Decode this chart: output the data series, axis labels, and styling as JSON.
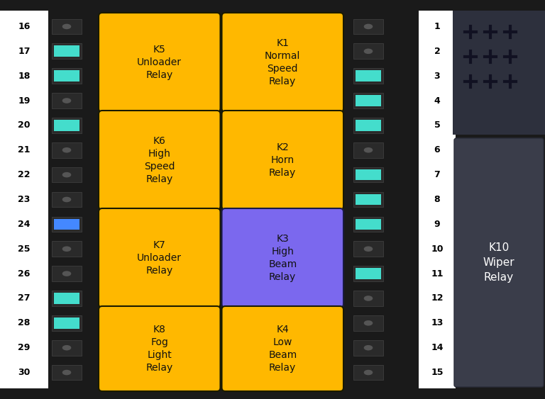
{
  "bg_color": "#1a1a1a",
  "dark_box_color": "#1c1c1c",
  "left_strip_color": "#ffffff",
  "right_strip_color": "#ffffff",
  "relay_yellow": "#FFB800",
  "relay_purple": "#7B68EE",
  "k10_bg": "#3a3d4a",
  "k10_top_bg": "#2e3140",
  "relays": [
    {
      "label": "K5\nUnloader\nRelay",
      "color": "#FFB800",
      "col": 0,
      "row": 0
    },
    {
      "label": "K1\nNormal\nSpeed\nRelay",
      "color": "#FFB800",
      "col": 1,
      "row": 0
    },
    {
      "label": "K6\nHigh\nSpeed\nRelay",
      "color": "#FFB800",
      "col": 0,
      "row": 1
    },
    {
      "label": "K2\nHorn\nRelay",
      "color": "#FFB800",
      "col": 1,
      "row": 1
    },
    {
      "label": "K7\nUnloader\nRelay",
      "color": "#FFB800",
      "col": 0,
      "row": 2
    },
    {
      "label": "K3\nHigh\nBeam\nRelay",
      "color": "#7B68EE",
      "col": 1,
      "row": 2
    },
    {
      "label": "K8\nFog\nLight\nRelay",
      "color": "#FFB800",
      "col": 0,
      "row": 3
    },
    {
      "label": "K4\nLow\nBeam\nRelay",
      "color": "#FFB800",
      "col": 1,
      "row": 3
    }
  ],
  "left_fuses": [
    {
      "num": 16,
      "fuse_color": null
    },
    {
      "num": 17,
      "fuse_color": "#44DDCC"
    },
    {
      "num": 18,
      "fuse_color": "#44DDCC"
    },
    {
      "num": 19,
      "fuse_color": null
    },
    {
      "num": 20,
      "fuse_color": "#44DDCC"
    },
    {
      "num": 21,
      "fuse_color": null
    },
    {
      "num": 22,
      "fuse_color": null
    },
    {
      "num": 23,
      "fuse_color": null
    },
    {
      "num": 24,
      "fuse_color": "#4488FF"
    },
    {
      "num": 25,
      "fuse_color": null
    },
    {
      "num": 26,
      "fuse_color": null
    },
    {
      "num": 27,
      "fuse_color": "#44DDCC"
    },
    {
      "num": 28,
      "fuse_color": "#44DDCC"
    },
    {
      "num": 29,
      "fuse_color": null
    },
    {
      "num": 30,
      "fuse_color": null
    }
  ],
  "right_fuses": [
    {
      "num": 1,
      "fuse_color": null
    },
    {
      "num": 2,
      "fuse_color": null
    },
    {
      "num": 3,
      "fuse_color": "#44DDCC"
    },
    {
      "num": 4,
      "fuse_color": "#44DDCC"
    },
    {
      "num": 5,
      "fuse_color": "#44DDCC"
    },
    {
      "num": 6,
      "fuse_color": null
    },
    {
      "num": 7,
      "fuse_color": "#44DDCC"
    },
    {
      "num": 8,
      "fuse_color": "#44DDCC"
    },
    {
      "num": 9,
      "fuse_color": "#44DDCC"
    },
    {
      "num": 10,
      "fuse_color": null
    },
    {
      "num": 11,
      "fuse_color": "#44DDCC"
    },
    {
      "num": 12,
      "fuse_color": null
    },
    {
      "num": 13,
      "fuse_color": null
    },
    {
      "num": 14,
      "fuse_color": null
    },
    {
      "num": 15,
      "fuse_color": null
    }
  ]
}
